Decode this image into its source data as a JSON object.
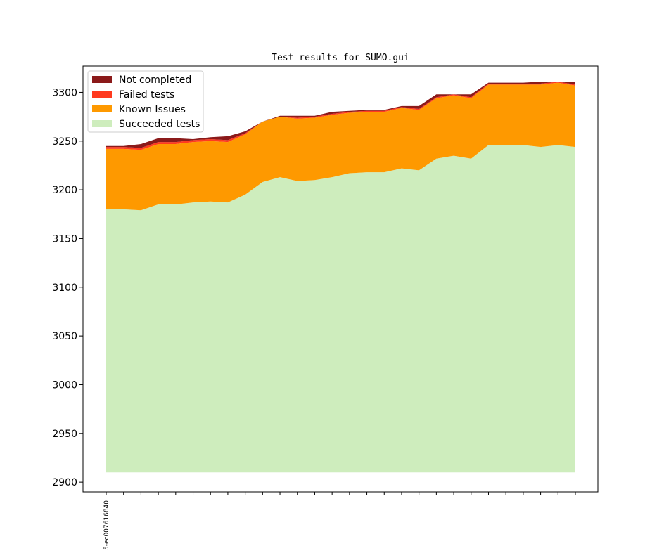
{
  "chart_data": {
    "type": "area",
    "title": "Test results for SUMO.gui",
    "xlabel": "",
    "ylabel": "",
    "ylim": [
      2890,
      3327
    ],
    "baseline": 2910,
    "yticks": [
      2900,
      2950,
      3000,
      3050,
      3100,
      3150,
      3200,
      3250,
      3300
    ],
    "x_tick_count": 28,
    "x_tick_labels": [
      "5-ec007616840"
    ],
    "legend_position": "top-left",
    "series": [
      {
        "name": "Succeeded tests",
        "color": "#ceedbd",
        "values": [
          3180,
          3180,
          3179,
          3185,
          3185,
          3187,
          3188,
          3187,
          3195,
          3208,
          3213,
          3209,
          3210,
          3213,
          3217,
          3218,
          3218,
          3222,
          3220,
          3232,
          3235,
          3232,
          3246,
          3246,
          3246,
          3244,
          3246,
          3244
        ]
      },
      {
        "name": "Known Issues",
        "color": "#fe9900",
        "values": [
          62,
          62,
          62,
          62,
          62,
          62,
          62,
          62,
          62,
          62,
          62,
          64,
          64,
          64,
          62,
          62,
          62,
          62,
          62,
          62,
          62,
          62,
          62,
          62,
          62,
          64,
          64,
          63
        ]
      },
      {
        "name": "Failed tests",
        "color": "#ff3a1f",
        "values": [
          2,
          2,
          2,
          2,
          2,
          2,
          2,
          2,
          1,
          0,
          0,
          1,
          1,
          1,
          1,
          1,
          1,
          1,
          1,
          1,
          1,
          1,
          1,
          1,
          1,
          1,
          1,
          1
        ]
      },
      {
        "name": "Not completed",
        "color": "#8b1a1a",
        "values": [
          1,
          1,
          4,
          4,
          4,
          1,
          2,
          4,
          2,
          0,
          1,
          2,
          1,
          2,
          1,
          1,
          1,
          1,
          3,
          3,
          0,
          3,
          1,
          1,
          1,
          2,
          0,
          3
        ]
      }
    ]
  }
}
